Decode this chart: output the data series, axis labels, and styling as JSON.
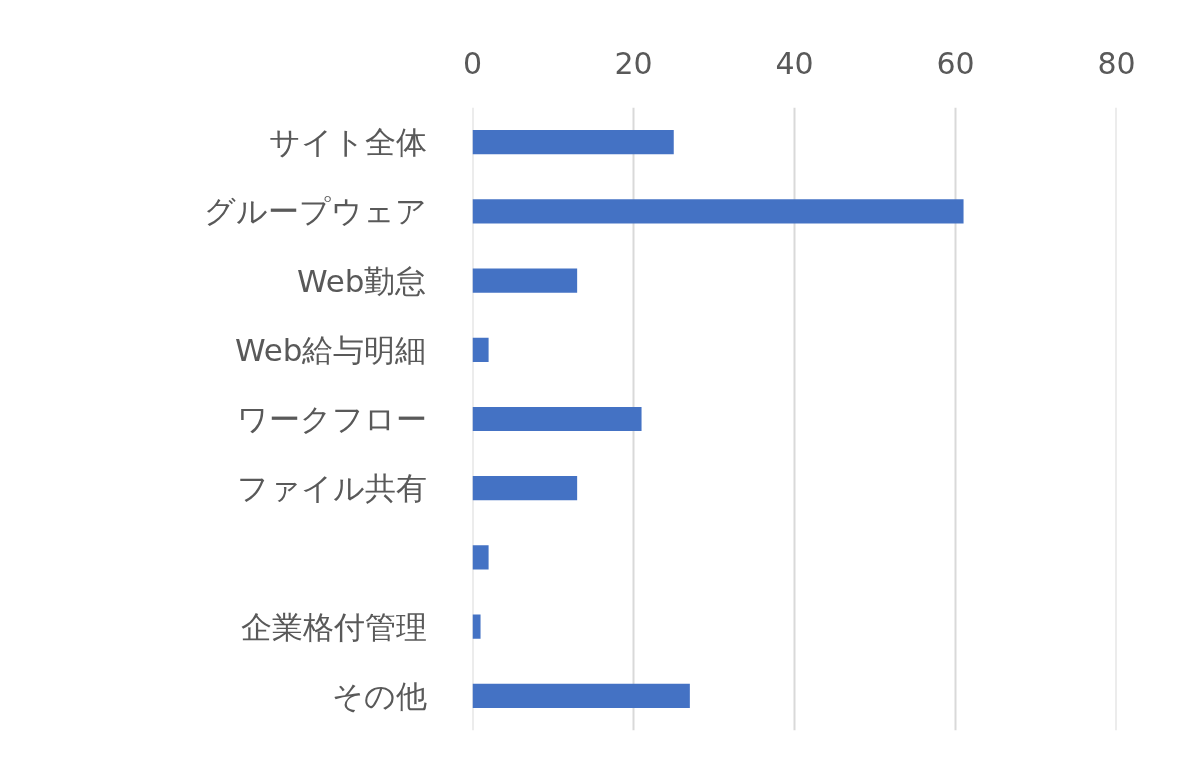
{
  "chart_data": {
    "type": "bar",
    "orientation": "horizontal",
    "categories": [
      "サイト全体",
      "グループウェア",
      "Web勤怠",
      "Web給与明細",
      "ワークフロー",
      "ファイル共有",
      null,
      "企業格付管理",
      "その他"
    ],
    "values": [
      25,
      61,
      13,
      2,
      21,
      13,
      2,
      1,
      27
    ],
    "color": "#4472c4",
    "xlim": [
      0,
      80
    ],
    "xticks": [
      0,
      20,
      40,
      60,
      80
    ],
    "grid": "x"
  }
}
